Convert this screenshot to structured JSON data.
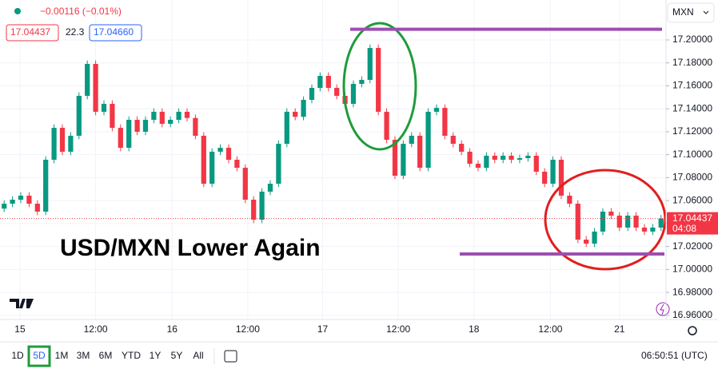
{
  "header": {
    "change": "−0.00116 (−0.01%)",
    "bid": "17.04437",
    "spread": "22.3",
    "ask": "17.04660",
    "currency": "MXN"
  },
  "chart_data": {
    "type": "candlestick",
    "title": "USD/MXN Lower Again",
    "open": [
      17.053,
      17.0573,
      17.0608,
      17.0643,
      17.0573,
      17.0504,
      17.0956,
      17.1234,
      17.1026,
      17.1165,
      17.1513,
      17.1791,
      17.1374,
      17.1443,
      17.1234,
      17.106,
      17.1304,
      17.12,
      17.1304,
      17.1374,
      17.1269,
      17.1304,
      17.1374,
      17.132,
      17.1165,
      17.0747,
      17.1026,
      17.106,
      17.0956,
      17.0886,
      17.0608,
      17.0434,
      17.0678,
      17.0747,
      17.1095,
      17.1374,
      17.133,
      17.1478,
      17.1582,
      17.1687,
      17.1582,
      17.1513,
      17.1443,
      17.1617,
      17.1652,
      17.193,
      17.1374,
      17.113,
      17.0817,
      17.1095,
      17.1165,
      17.0886,
      17.1374,
      17.1408,
      17.1165,
      17.1095,
      17.1026,
      17.0921,
      17.0886,
      17.0991,
      17.0956,
      17.0991,
      17.0956,
      17.097,
      17.0991,
      17.0852,
      17.0747,
      17.0956,
      17.0643,
      17.0573,
      17.026,
      17.0225,
      17.033,
      17.0504,
      17.0469,
      17.0365,
      17.0469,
      17.0365,
      17.033,
      17.0365
    ],
    "high": [
      17.0603,
      17.0638,
      17.0673,
      17.0673,
      17.0603,
      17.0986,
      17.1264,
      17.1264,
      17.1195,
      17.1543,
      17.1821,
      17.1821,
      17.1473,
      17.1473,
      17.1264,
      17.1334,
      17.1334,
      17.1334,
      17.1404,
      17.1404,
      17.1334,
      17.1404,
      17.1404,
      17.135,
      17.1195,
      17.1056,
      17.109,
      17.109,
      17.0986,
      17.0916,
      17.0638,
      17.0708,
      17.0777,
      17.1125,
      17.1404,
      17.1404,
      17.1508,
      17.1612,
      17.1717,
      17.1717,
      17.1612,
      17.1543,
      17.1647,
      17.1682,
      17.196,
      17.196,
      17.1404,
      17.116,
      17.1125,
      17.1195,
      17.1195,
      17.1404,
      17.1438,
      17.1438,
      17.1195,
      17.1125,
      17.1056,
      17.0951,
      17.1021,
      17.1021,
      17.1021,
      17.1021,
      17.1,
      17.1021,
      17.1021,
      17.0882,
      17.0986,
      17.0986,
      17.0673,
      17.0603,
      17.029,
      17.036,
      17.0534,
      17.0534,
      17.0499,
      17.0499,
      17.0499,
      17.0395,
      17.0395,
      17.0474
    ],
    "low": [
      17.05,
      17.0543,
      17.0578,
      17.0543,
      17.0474,
      17.0474,
      17.0926,
      17.0996,
      17.0996,
      17.1135,
      17.1483,
      17.1344,
      17.1344,
      17.1204,
      17.103,
      17.103,
      17.117,
      17.117,
      17.1274,
      17.1239,
      17.1239,
      17.1274,
      17.129,
      17.1135,
      17.0717,
      17.0717,
      17.0996,
      17.0926,
      17.0856,
      17.0578,
      17.0404,
      17.0404,
      17.0648,
      17.0717,
      17.1065,
      17.13,
      17.13,
      17.1448,
      17.1552,
      17.1552,
      17.1483,
      17.1413,
      17.1413,
      17.1587,
      17.1622,
      17.1344,
      17.11,
      17.0787,
      17.0787,
      17.1065,
      17.0856,
      17.0856,
      17.1344,
      17.1135,
      17.1065,
      17.0996,
      17.0891,
      17.0856,
      17.0856,
      17.0926,
      17.0926,
      17.0926,
      17.0926,
      17.094,
      17.0822,
      17.0717,
      17.0717,
      17.0613,
      17.0543,
      17.023,
      17.0195,
      17.0195,
      17.03,
      17.0439,
      17.0335,
      17.0335,
      17.0335,
      17.03,
      17.03,
      17.0335
    ],
    "close": [
      17.0573,
      17.0608,
      17.0643,
      17.0573,
      17.0504,
      17.0956,
      17.1234,
      17.1026,
      17.1165,
      17.1513,
      17.1791,
      17.1374,
      17.1443,
      17.1234,
      17.106,
      17.1304,
      17.12,
      17.1304,
      17.1374,
      17.1269,
      17.1304,
      17.1374,
      17.132,
      17.1165,
      17.0747,
      17.1026,
      17.106,
      17.0956,
      17.0886,
      17.0608,
      17.0434,
      17.0678,
      17.0747,
      17.1095,
      17.1374,
      17.133,
      17.1478,
      17.1582,
      17.1687,
      17.1582,
      17.1513,
      17.1443,
      17.1617,
      17.1652,
      17.193,
      17.1374,
      17.113,
      17.0817,
      17.1095,
      17.1165,
      17.0886,
      17.1374,
      17.1408,
      17.1165,
      17.1095,
      17.1026,
      17.0921,
      17.0886,
      17.0991,
      17.0956,
      17.0991,
      17.0956,
      17.097,
      17.0991,
      17.0852,
      17.0747,
      17.0956,
      17.0643,
      17.0573,
      17.026,
      17.0225,
      17.033,
      17.0504,
      17.0469,
      17.0365,
      17.0469,
      17.0365,
      17.033,
      17.0365,
      17.04437
    ],
    "up_color": "#089981",
    "down_color": "#f23645",
    "xlim": [
      -0.5,
      79.6
    ],
    "xticks": [
      {
        "value": 1.9,
        "label": "15"
      },
      {
        "value": 11.0,
        "label": "12:00"
      },
      {
        "value": 20.2,
        "label": "16"
      },
      {
        "value": 29.3,
        "label": "12:00"
      },
      {
        "value": 38.3,
        "label": "17"
      },
      {
        "value": 47.4,
        "label": "12:00"
      },
      {
        "value": 56.5,
        "label": "18"
      },
      {
        "value": 65.7,
        "label": "12:00"
      },
      {
        "value": 74.0,
        "label": "21"
      }
    ],
    "ylim": [
      16.9564,
      17.2348
    ],
    "yticks": [
      {
        "value": 17.2,
        "label": "17.20000"
      },
      {
        "value": 17.18,
        "label": "17.18000"
      },
      {
        "value": 17.16,
        "label": "17.16000"
      },
      {
        "value": 17.14,
        "label": "17.14000"
      },
      {
        "value": 17.12,
        "label": "17.12000"
      },
      {
        "value": 17.1,
        "label": "17.10000"
      },
      {
        "value": 17.08,
        "label": "17.08000"
      },
      {
        "value": 17.06,
        "label": "17.06000"
      },
      {
        "value": 17.04,
        "label": "17.04000"
      },
      {
        "value": 17.02,
        "label": "17.02000"
      },
      {
        "value": 17.0,
        "label": "17.00000"
      },
      {
        "value": 16.98,
        "label": "16.98000"
      },
      {
        "value": 16.96,
        "label": "16.96000"
      }
    ],
    "grid": true,
    "last_price": 17.04437,
    "countdown": "04:08",
    "levels": [
      17.2093,
      17.0135
    ],
    "level_color": "#9c4fb0"
  },
  "footer": {
    "timeframes": [
      "1D",
      "5D",
      "1M",
      "3M",
      "6M",
      "YTD",
      "1Y",
      "5Y",
      "All"
    ],
    "selected": 1,
    "clock": "06:50:51 (UTC)"
  }
}
